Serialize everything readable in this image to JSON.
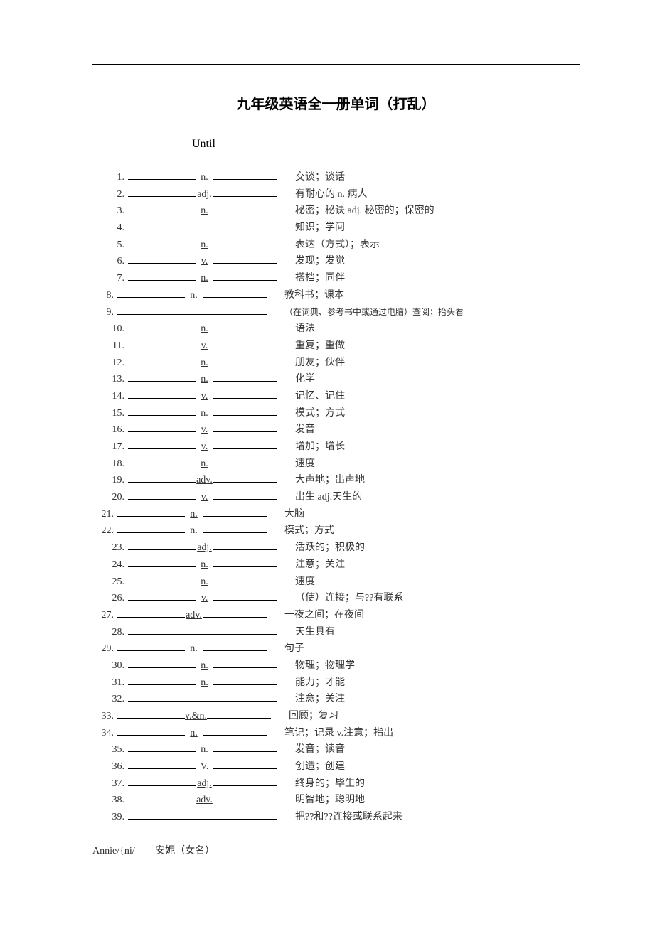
{
  "title": "九年级英语全一册单词（打乱）",
  "section": "Until",
  "items": [
    {
      "num": "1.",
      "pos": "n.",
      "def": "交谈；谈话",
      "indent": 1
    },
    {
      "num": "2.",
      "pos": "adj.",
      "def": "有耐心的 n.    病人",
      "indent": 1
    },
    {
      "num": "3.",
      "pos": "n.",
      "def": "秘密；秘诀 adj.    秘密的；保密的",
      "indent": 1
    },
    {
      "num": "4.",
      "pos": "",
      "def": "知识；学问",
      "indent": 1,
      "full": true
    },
    {
      "num": "5.",
      "pos": "n.",
      "def": "表达（方式）；表示",
      "indent": 1
    },
    {
      "num": "6.",
      "pos": "v.",
      "def": "发现；发觉",
      "indent": 1
    },
    {
      "num": "7.",
      "pos": "n.",
      "def": "搭档；同伴",
      "indent": 1
    },
    {
      "num": "8.",
      "pos": "n.",
      "def": "教科书；课本",
      "indent": 0
    },
    {
      "num": "9.",
      "pos": "",
      "def": "（在词典、参考书中或通过电脑）查阅；抬头看",
      "indent": 0,
      "full": true,
      "small": true
    },
    {
      "num": "10.",
      "pos": "n.",
      "def": "语法",
      "indent": 1
    },
    {
      "num": "11.",
      "pos": "v.",
      "def": "重复；重做",
      "indent": 1
    },
    {
      "num": "12.",
      "pos": "n.",
      "def": "朋友；伙伴",
      "indent": 1
    },
    {
      "num": "13.",
      "pos": "n.",
      "def": "化学",
      "indent": 1
    },
    {
      "num": "14.",
      "pos": "v.",
      "def": "记忆、记住",
      "indent": 1
    },
    {
      "num": "15.",
      "pos": "n.",
      "def": "模式；方式",
      "indent": 1
    },
    {
      "num": "16.",
      "pos": "v.",
      "def": "发音",
      "indent": 1
    },
    {
      "num": "17.",
      "pos": "v.",
      "def": "增加；增长",
      "indent": 1
    },
    {
      "num": "18.",
      "pos": "n.",
      "def": "速度",
      "indent": 1
    },
    {
      "num": "19.",
      "pos": "adv.",
      "def": "大声地；出声地",
      "indent": 1
    },
    {
      "num": "20.",
      "pos": "v.",
      "def": "出生 adj.天生的",
      "indent": 1
    },
    {
      "num": "21.",
      "pos": "n.",
      "def": "大脑",
      "indent": 0
    },
    {
      "num": "22.",
      "pos": "n.",
      "def": "模式；方式",
      "indent": 0
    },
    {
      "num": "23.",
      "pos": "adj.",
      "def": "活跃的；积极的",
      "indent": 1
    },
    {
      "num": "24.",
      "pos": "n.",
      "def": "注意；关注",
      "indent": 1
    },
    {
      "num": "25.",
      "pos": "n.",
      "def": "速度",
      "indent": 1
    },
    {
      "num": "26.",
      "pos": "v.",
      "def": "（使）连接；与??有联系",
      "indent": 1
    },
    {
      "num": "27.",
      "pos": "adv.",
      "def": "一夜之间；在夜间",
      "indent": 0
    },
    {
      "num": "28.",
      "pos": "",
      "def": "天生具有",
      "indent": 1,
      "full": true
    },
    {
      "num": "29.",
      "pos": "n.",
      "def": "句子",
      "indent": 0
    },
    {
      "num": "30.",
      "pos": "n.",
      "def": "物理；物理学",
      "indent": 1
    },
    {
      "num": "31.",
      "pos": "n.",
      "def": "能力；才能",
      "indent": 1
    },
    {
      "num": "32.",
      "pos": "",
      "def": "注意；关注",
      "indent": 1,
      "full": true
    },
    {
      "num": "33.",
      "pos": "v.&n.",
      "def": "回顾；复习",
      "indent": 0
    },
    {
      "num": "34.",
      "pos": "n.",
      "def": "笔记；记录 v.注意；指出",
      "indent": 0
    },
    {
      "num": "35.",
      "pos": "n.",
      "def": "发音；读音",
      "indent": 1
    },
    {
      "num": "36.",
      "pos": "V.",
      "def": "创造；创建",
      "indent": 1
    },
    {
      "num": "37.",
      "pos": "adj.",
      "def": "终身的；毕生的",
      "indent": 1
    },
    {
      "num": "38.",
      "pos": "adv.",
      "def": "明智地；聪明地",
      "indent": 1
    },
    {
      "num": "39.",
      "pos": "",
      "def": "把??和??连接或联系起来",
      "indent": 1,
      "full": true
    }
  ],
  "footer": {
    "en": "Annie/{ni/",
    "cn": "安妮（女名）"
  },
  "colors": {
    "background": "#ffffff",
    "text": "#333333",
    "title": "#000000",
    "line": "#000000"
  },
  "typography": {
    "title_fontsize": 20,
    "body_fontsize": 14,
    "small_fontsize": 12,
    "font_family_cn": "SimSun",
    "font_family_en": "Times New Roman"
  }
}
